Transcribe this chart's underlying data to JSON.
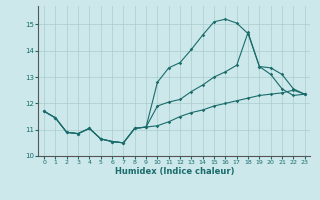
{
  "xlabel": "Humidex (Indice chaleur)",
  "bg_color": "#cce8eb",
  "line_color": "#1a6b6b",
  "grid_color": "#aacccc",
  "xlim": [
    -0.5,
    23.5
  ],
  "ylim": [
    10.0,
    15.7
  ],
  "yticks": [
    10,
    11,
    12,
    13,
    14,
    15
  ],
  "xticks": [
    0,
    1,
    2,
    3,
    4,
    5,
    6,
    7,
    8,
    9,
    10,
    11,
    12,
    13,
    14,
    15,
    16,
    17,
    18,
    19,
    20,
    21,
    22,
    23
  ],
  "line1_x": [
    0,
    1,
    2,
    3,
    4,
    5,
    6,
    7,
    8,
    9,
    10,
    11,
    12,
    13,
    14,
    15,
    16,
    17,
    18,
    19,
    20,
    21,
    22,
    23
  ],
  "line1_y": [
    11.7,
    11.45,
    10.9,
    10.85,
    11.05,
    10.65,
    10.55,
    10.5,
    11.05,
    11.1,
    12.8,
    13.35,
    13.55,
    14.05,
    14.6,
    15.1,
    15.2,
    15.05,
    14.65,
    13.4,
    13.1,
    12.55,
    12.3,
    12.35
  ],
  "line2_x": [
    0,
    1,
    2,
    3,
    4,
    5,
    6,
    7,
    8,
    9,
    10,
    11,
    12,
    13,
    14,
    15,
    16,
    17,
    18,
    19,
    20,
    21,
    22,
    23
  ],
  "line2_y": [
    11.7,
    11.45,
    10.9,
    10.85,
    11.05,
    10.65,
    10.55,
    10.5,
    11.05,
    11.1,
    11.9,
    12.05,
    12.15,
    12.45,
    12.7,
    13.0,
    13.2,
    13.45,
    14.7,
    13.4,
    13.35,
    13.1,
    12.55,
    12.35
  ],
  "line3_x": [
    0,
    1,
    2,
    3,
    4,
    5,
    6,
    7,
    8,
    9,
    10,
    11,
    12,
    13,
    14,
    15,
    16,
    17,
    18,
    19,
    20,
    21,
    22,
    23
  ],
  "line3_y": [
    11.7,
    11.45,
    10.9,
    10.85,
    11.05,
    10.65,
    10.55,
    10.5,
    11.05,
    11.1,
    11.15,
    11.3,
    11.5,
    11.65,
    11.75,
    11.9,
    12.0,
    12.1,
    12.2,
    12.3,
    12.35,
    12.4,
    12.5,
    12.35
  ]
}
